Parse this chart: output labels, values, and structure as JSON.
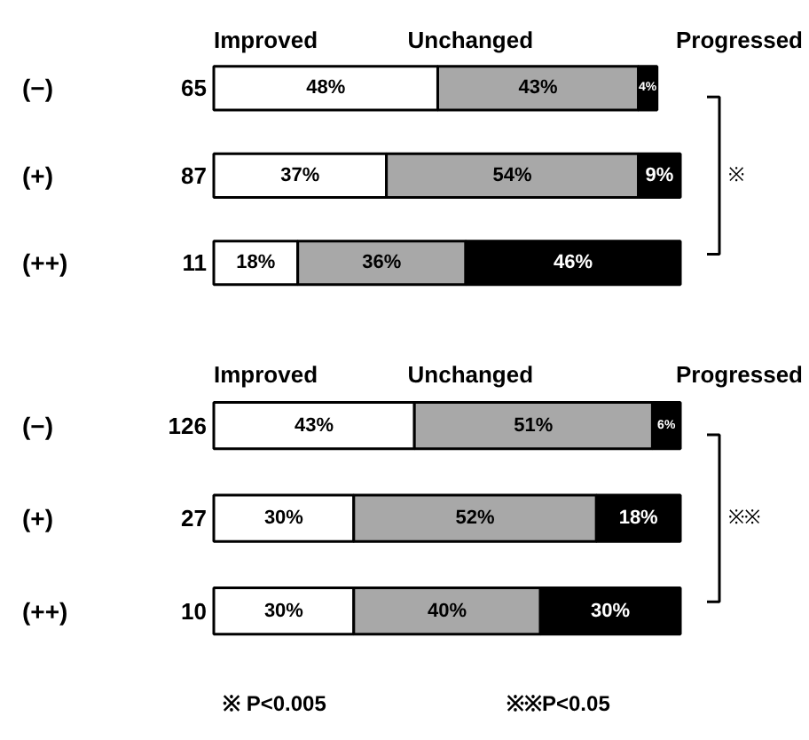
{
  "chart_data": [
    {
      "type": "bar",
      "orientation": "horizontal",
      "stacked": true,
      "legend": "top",
      "categories": [
        "(−)",
        "(+)",
        "(++)"
      ],
      "series": [
        {
          "name": "Improved",
          "color": "#ffffff",
          "values": [
            48,
            37,
            18
          ],
          "value_labels": [
            "48%",
            "37%",
            "18%"
          ]
        },
        {
          "name": "Unchanged",
          "color": "#a8a8a8",
          "values": [
            43,
            54,
            36
          ],
          "value_labels": [
            "43%",
            "54%",
            "36%"
          ]
        },
        {
          "name": "Progressed",
          "color": "#000000",
          "values": [
            4,
            9,
            46
          ],
          "value_labels": [
            "4%",
            "9%",
            "46%"
          ]
        }
      ],
      "annotations": [
        "65",
        "87",
        "11",
        "※"
      ]
    },
    {
      "type": "bar",
      "orientation": "horizontal",
      "stacked": true,
      "legend": "top",
      "categories": [
        "(−)",
        "(+)",
        "(++)"
      ],
      "series": [
        {
          "name": "Improved",
          "color": "#ffffff",
          "values": [
            43,
            30,
            30
          ],
          "value_labels": [
            "43%",
            "30%",
            "30%"
          ]
        },
        {
          "name": "Unchanged",
          "color": "#a8a8a8",
          "values": [
            51,
            52,
            40
          ],
          "value_labels": [
            "51%",
            "52%",
            "40%"
          ]
        },
        {
          "name": "Progressed",
          "color": "#000000",
          "values": [
            6,
            18,
            30
          ],
          "value_labels": [
            "6%",
            "18%",
            "30%"
          ]
        }
      ],
      "annotations": [
        "126",
        "27",
        "10",
        "※※",
        "※ P<0.005",
        "※※P<0.05"
      ]
    }
  ]
}
